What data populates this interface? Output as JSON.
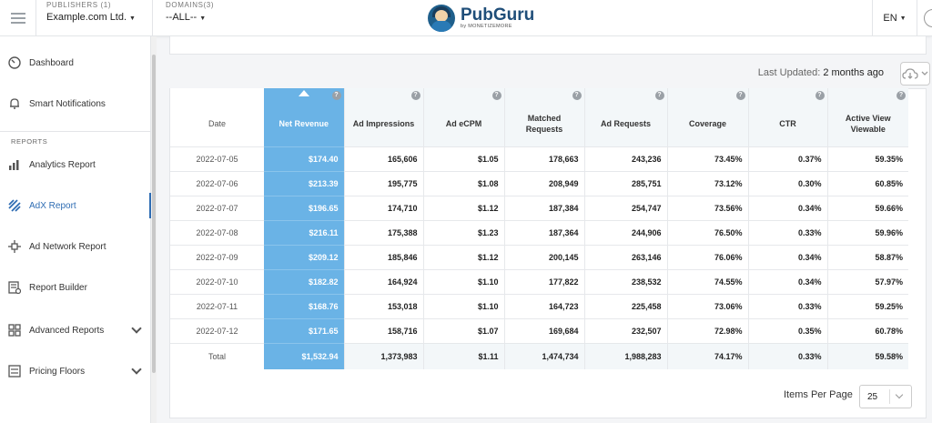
{
  "header": {
    "publishers_label": "PUBLISHERS (1)",
    "publisher_value": "Example.com Ltd.",
    "domains_label": "DOMAINS(3)",
    "domain_value": "--ALL--",
    "logo_name": "PubGuru",
    "logo_sub": "by MONETIZEMORE",
    "language": "EN"
  },
  "sidebar": {
    "items": [
      {
        "label": "Dashboard",
        "icon": "gauge-icon"
      },
      {
        "label": "Smart Notifications",
        "icon": "bell-icon"
      },
      {
        "label": "Analytics Report",
        "icon": "bar-chart-icon"
      },
      {
        "label": "AdX Report",
        "icon": "adx-icon"
      },
      {
        "label": "Ad Network Report",
        "icon": "network-icon"
      },
      {
        "label": "Report Builder",
        "icon": "report-builder-icon"
      },
      {
        "label": "Advanced Reports",
        "icon": "advanced-reports-icon"
      },
      {
        "label": "Pricing Floors",
        "icon": "pricing-floors-icon"
      }
    ],
    "section_label": "REPORTS"
  },
  "status": {
    "last_updated_label": "Last Updated:",
    "last_updated_value": "2 months ago"
  },
  "table": {
    "headers": [
      "Date",
      "Net Revenue",
      "Ad Impressions",
      "Ad eCPM",
      "Matched Requests",
      "Ad Requests",
      "Coverage",
      "CTR",
      "Active View Viewable"
    ],
    "rows": [
      [
        "2022-07-05",
        "$174.40",
        "165,606",
        "$1.05",
        "178,663",
        "243,236",
        "73.45%",
        "0.37%",
        "59.35%"
      ],
      [
        "2022-07-06",
        "$213.39",
        "195,775",
        "$1.08",
        "208,949",
        "285,751",
        "73.12%",
        "0.30%",
        "60.85%"
      ],
      [
        "2022-07-07",
        "$196.65",
        "174,710",
        "$1.12",
        "187,384",
        "254,747",
        "73.56%",
        "0.34%",
        "59.66%"
      ],
      [
        "2022-07-08",
        "$216.11",
        "175,388",
        "$1.23",
        "187,364",
        "244,906",
        "76.50%",
        "0.33%",
        "59.96%"
      ],
      [
        "2022-07-09",
        "$209.12",
        "185,846",
        "$1.12",
        "200,145",
        "263,146",
        "76.06%",
        "0.34%",
        "58.87%"
      ],
      [
        "2022-07-10",
        "$182.82",
        "164,924",
        "$1.10",
        "177,822",
        "238,532",
        "74.55%",
        "0.34%",
        "57.97%"
      ],
      [
        "2022-07-11",
        "$168.76",
        "153,018",
        "$1.10",
        "164,723",
        "225,458",
        "73.06%",
        "0.33%",
        "59.25%"
      ],
      [
        "2022-07-12",
        "$171.65",
        "158,716",
        "$1.07",
        "169,684",
        "232,507",
        "72.98%",
        "0.35%",
        "60.78%"
      ]
    ],
    "total": [
      "Total",
      "$1,532.94",
      "1,373,983",
      "$1.11",
      "1,474,734",
      "1,988,283",
      "74.17%",
      "0.33%",
      "59.58%"
    ]
  },
  "pagination": {
    "items_per_page_label": "Items Per Page",
    "items_per_page_value": "25"
  },
  "colors": {
    "accent": "#2f6db3",
    "highlight_column": "#6ab3e6"
  }
}
